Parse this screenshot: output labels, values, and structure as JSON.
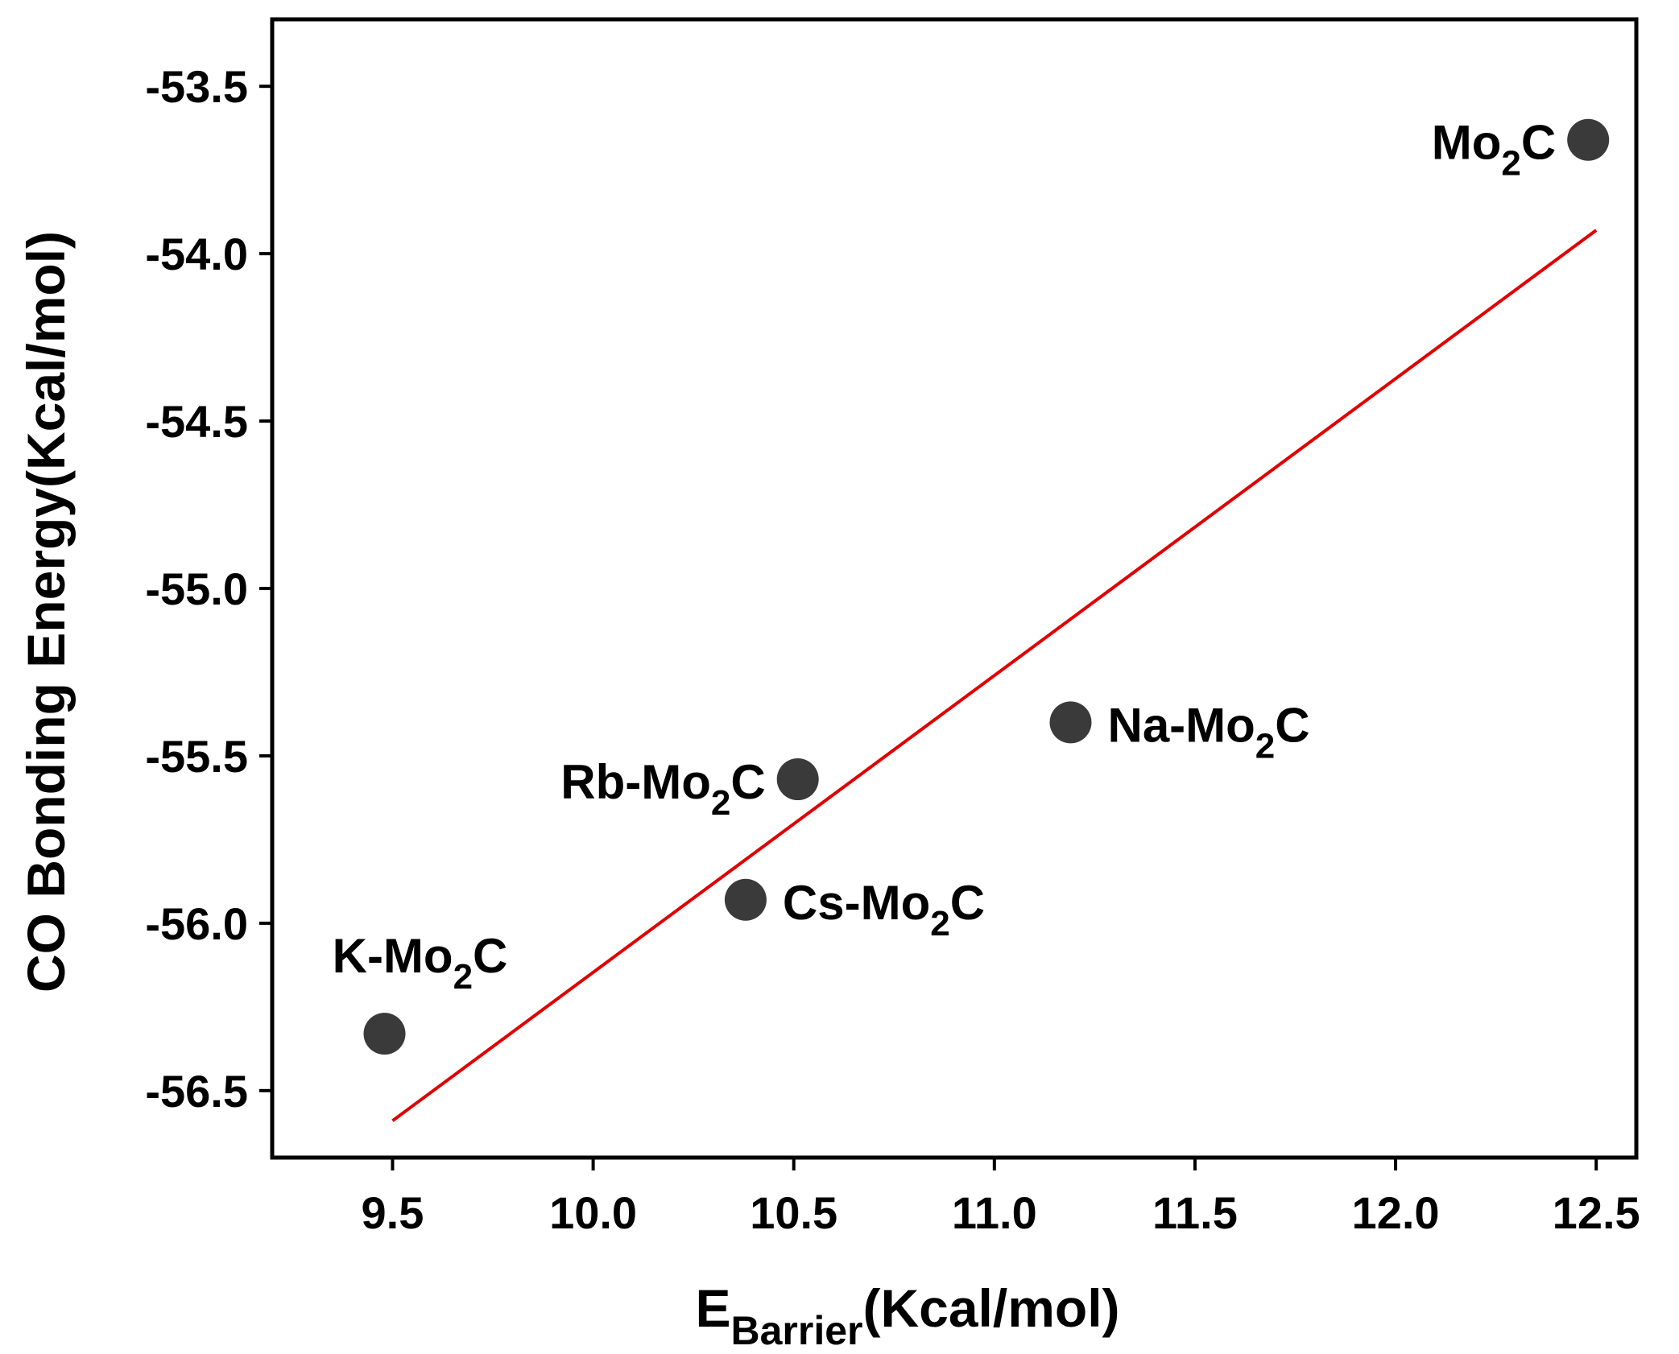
{
  "chart_data": {
    "type": "scatter",
    "title": "",
    "xlabel": {
      "main": "E",
      "subscript": "Barrier",
      "suffix": "(Kcal/mol)"
    },
    "ylabel": "CO Bonding Energy(Kcal/mol)",
    "xlim": [
      9.2,
      12.6
    ],
    "ylim": [
      -56.7,
      -53.3
    ],
    "x_ticks": [
      9.5,
      10.0,
      10.5,
      11.0,
      11.5,
      12.0,
      12.5
    ],
    "x_tick_labels": [
      "9.5",
      "10.0",
      "10.5",
      "11.0",
      "11.5",
      "12.0",
      "12.5"
    ],
    "y_ticks": [
      -56.5,
      -56.0,
      -55.5,
      -55.0,
      -54.5,
      -54.0,
      -53.5
    ],
    "y_tick_labels": [
      "-56.5",
      "-56.0",
      "-55.5",
      "-55.0",
      "-54.5",
      "-54.0",
      "-53.5"
    ],
    "grid": false,
    "legend": "none",
    "points": [
      {
        "label": "K-Mo",
        "label_sub": "2",
        "label_suffix": "C",
        "x": 9.48,
        "y": -56.33,
        "label_side": "above"
      },
      {
        "label": "Cs-Mo",
        "label_sub": "2",
        "label_suffix": "C",
        "x": 10.38,
        "y": -55.93,
        "label_side": "right"
      },
      {
        "label": "Rb-Mo",
        "label_sub": "2",
        "label_suffix": "C",
        "x": 10.51,
        "y": -55.57,
        "label_side": "left"
      },
      {
        "label": "Na-Mo",
        "label_sub": "2",
        "label_suffix": "C",
        "x": 11.19,
        "y": -55.4,
        "label_side": "right"
      },
      {
        "label": "Mo",
        "label_sub": "2",
        "label_suffix": "C",
        "x": 12.48,
        "y": -53.66,
        "label_side": "left"
      }
    ],
    "fit_line": {
      "x": [
        9.5,
        12.5
      ],
      "y": [
        -56.59,
        -53.93
      ]
    },
    "colors": {
      "point": "#3a3a3a",
      "fit_line": "#e00000",
      "axis": "#000000"
    }
  }
}
